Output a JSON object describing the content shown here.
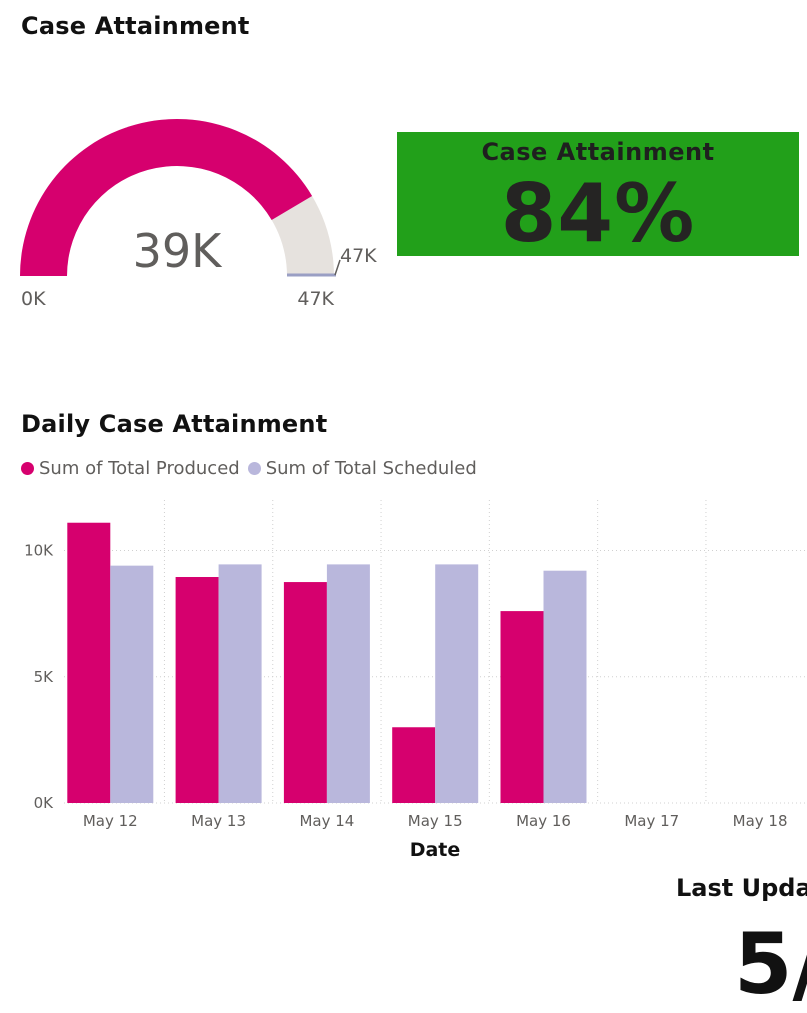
{
  "page": {
    "title": "Case Attainment",
    "daily_title": "Daily Case Attainment"
  },
  "gauge": {
    "value": 39000,
    "value_label": "39K",
    "min": 0,
    "min_label": "0K",
    "max": 47000,
    "max_label": "47K",
    "target": 47000,
    "target_label": "47K",
    "colors": {
      "fill": "#d6006e",
      "track": "#e6e2de",
      "target": "#9a9fc4"
    }
  },
  "kpi": {
    "label": "Case Attainment",
    "value": "84%",
    "background": "#22a01a"
  },
  "legend": {
    "items": [
      {
        "label": "Sum of Total Produced",
        "color": "#d6006e"
      },
      {
        "label": "Sum of Total Scheduled",
        "color": "#b9b7dc"
      }
    ]
  },
  "chart_data": {
    "type": "bar",
    "categories": [
      "May 12",
      "May 13",
      "May 14",
      "May 15",
      "May 16",
      "May 17",
      "May 18"
    ],
    "series": [
      {
        "name": "Sum of Total Produced",
        "color": "#d6006e",
        "values": [
          11100,
          8950,
          8750,
          3000,
          7600,
          null,
          null
        ]
      },
      {
        "name": "Sum of Total Scheduled",
        "color": "#b9b7dc",
        "values": [
          9400,
          9450,
          9450,
          9450,
          9200,
          null,
          null
        ]
      }
    ],
    "xlabel": "Date",
    "ylabel": "",
    "ylim": [
      0,
      12000
    ],
    "yticks": [
      0,
      5000,
      10000
    ],
    "ytick_labels": [
      "0K",
      "5K",
      "10K"
    ],
    "grid": true,
    "legend_position": "top-left"
  },
  "last_updated": {
    "label": "Last Upda",
    "value": "5/"
  }
}
